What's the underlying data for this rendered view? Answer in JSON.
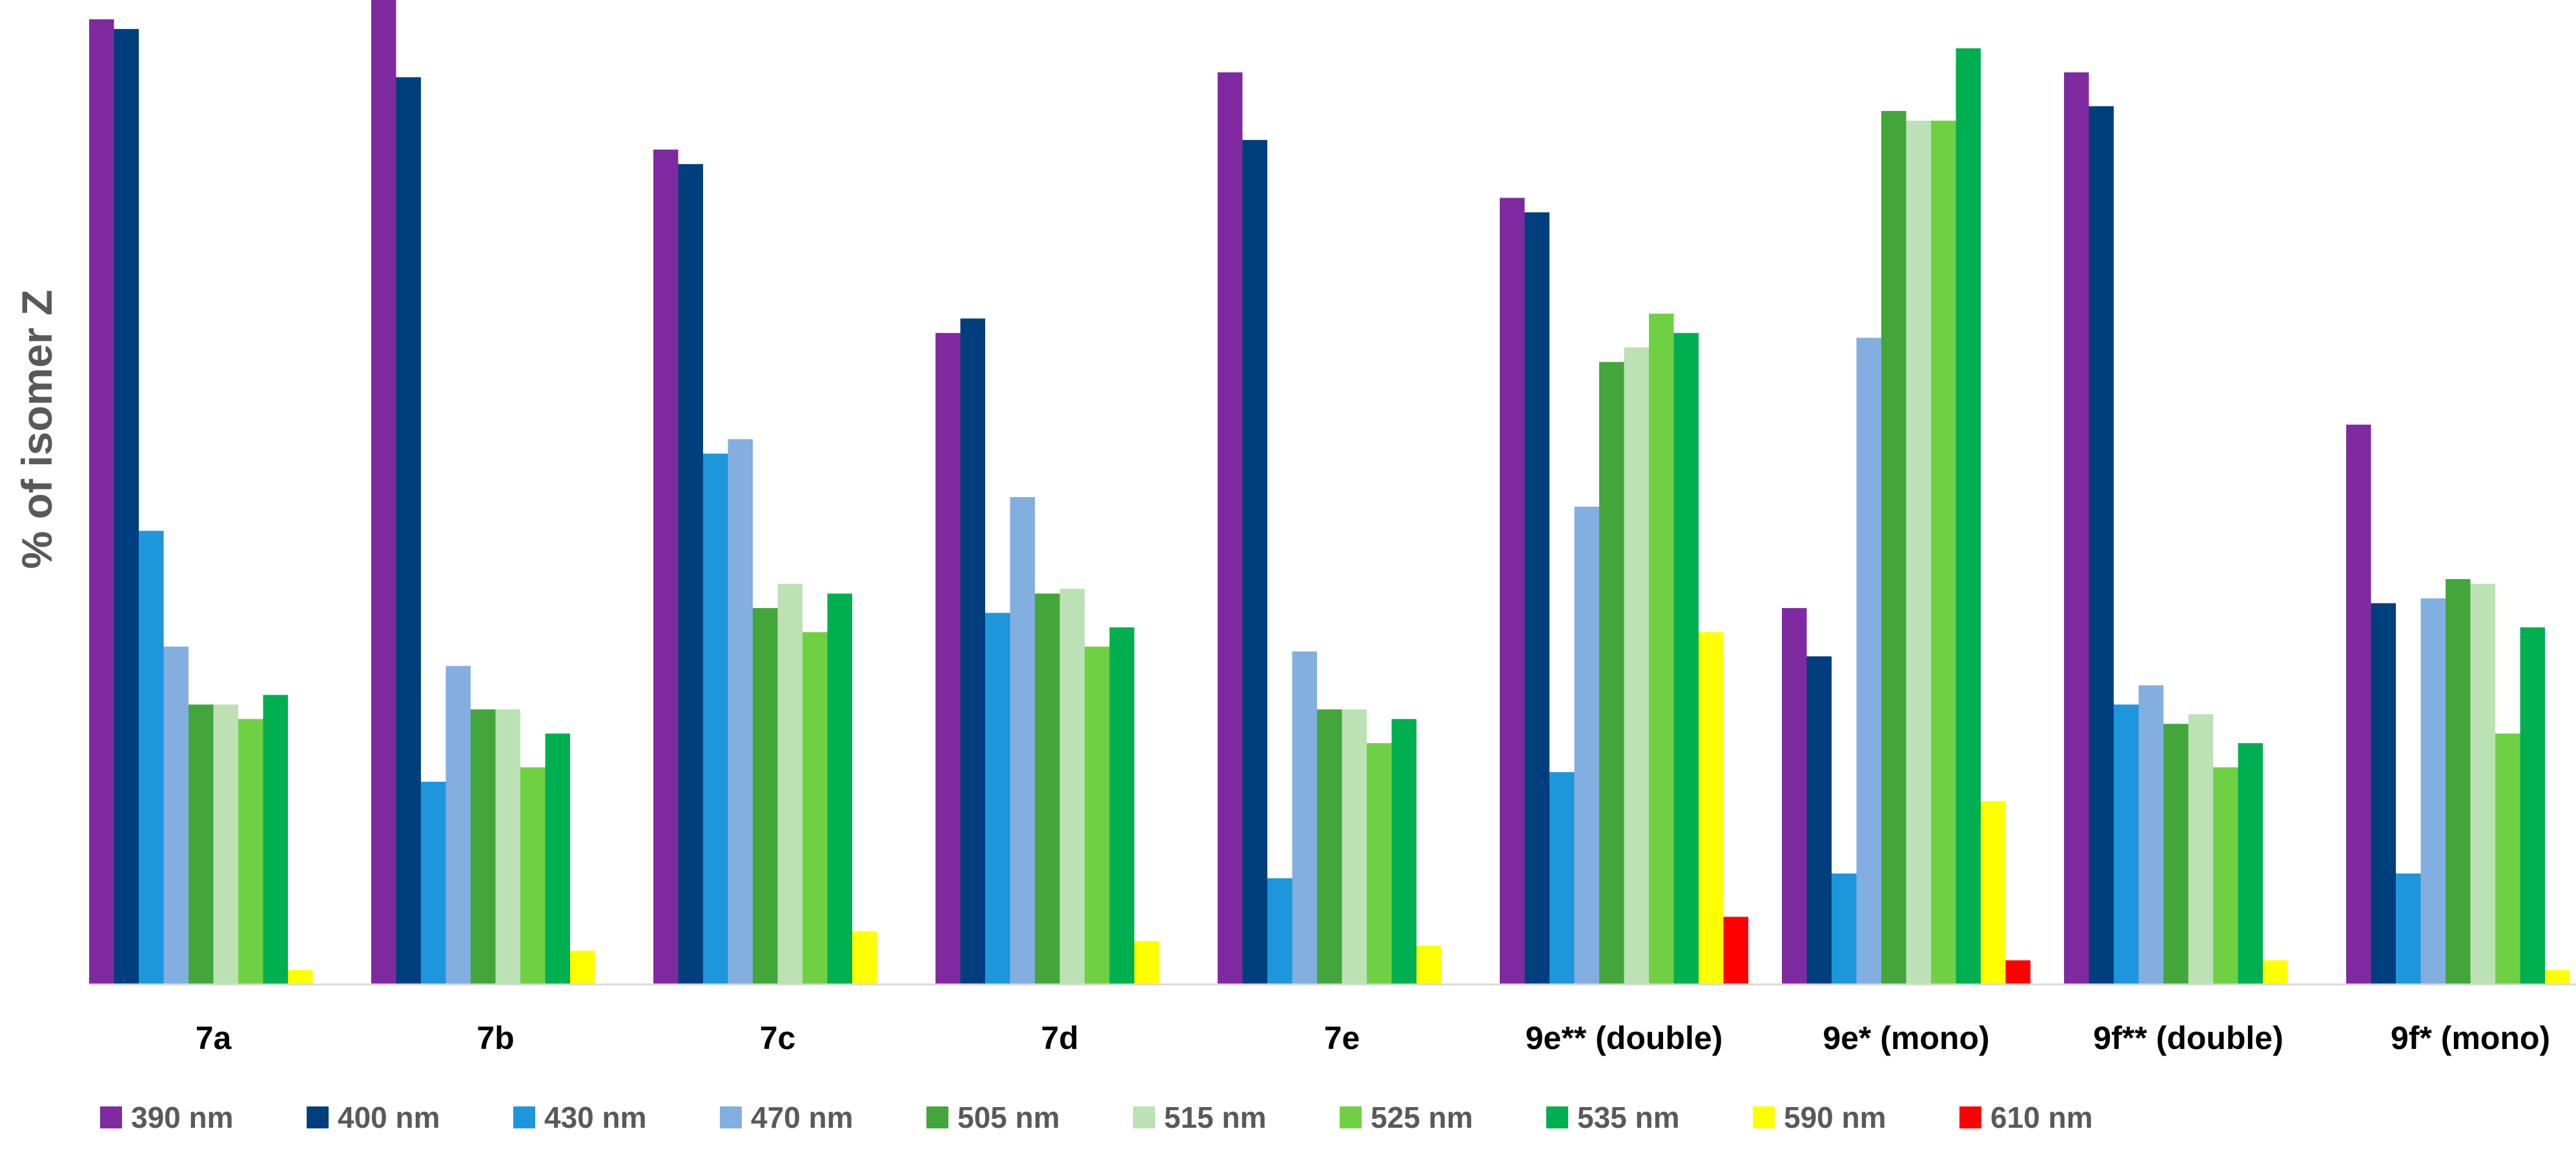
{
  "chart_data": {
    "type": "bar",
    "title": "",
    "xlabel": "",
    "ylabel": "% of isomer Z",
    "ylim": [
      0,
      102
    ],
    "grid": false,
    "legend_position": "bottom",
    "categories": [
      "7a",
      "7b",
      "7c",
      "7d",
      "7e",
      "9e** (double)",
      "9e* (mono)",
      "9f** (double)",
      "9f* (mono)"
    ],
    "series": [
      {
        "name": "390 nm",
        "color": "#7F2AA0",
        "values": [
          100,
          102,
          86.5,
          67.5,
          94.5,
          81.5,
          39,
          94.5,
          58
        ]
      },
      {
        "name": "400 nm",
        "color": "#003F7D",
        "values": [
          99,
          94,
          85,
          69,
          87.5,
          80,
          34,
          91,
          39.5
        ]
      },
      {
        "name": "430 nm",
        "color": "#1E96DC",
        "values": [
          47,
          21,
          55,
          38.5,
          11,
          22,
          11.5,
          29,
          11.5
        ]
      },
      {
        "name": "470 nm",
        "color": "#83AEE0",
        "values": [
          35,
          33,
          56.5,
          50.5,
          34.5,
          49.5,
          67,
          31,
          40
        ]
      },
      {
        "name": "505 nm",
        "color": "#43A63A",
        "values": [
          29,
          28.5,
          39,
          40.5,
          28.5,
          64.5,
          90.5,
          27,
          42
        ]
      },
      {
        "name": "515 nm",
        "color": "#BCE1B4",
        "values": [
          29,
          28.5,
          41.5,
          41,
          28.5,
          66,
          89.5,
          28,
          41.5
        ]
      },
      {
        "name": "525 nm",
        "color": "#70D044",
        "values": [
          27.5,
          22.5,
          36.5,
          35,
          25,
          69.5,
          89.5,
          22.5,
          26
        ]
      },
      {
        "name": "535 nm",
        "color": "#00AF50",
        "values": [
          30,
          26,
          40.5,
          37,
          27.5,
          67.5,
          97,
          25,
          37
        ]
      },
      {
        "name": "590 nm",
        "color": "#FFFF00",
        "values": [
          1.5,
          3.5,
          5.5,
          4.5,
          4,
          36.5,
          19,
          2.5,
          1.5
        ]
      },
      {
        "name": "610 nm",
        "color": "#FF0000",
        "values": [
          0,
          0,
          0,
          0,
          0,
          7,
          2.5,
          0,
          0
        ]
      }
    ]
  }
}
